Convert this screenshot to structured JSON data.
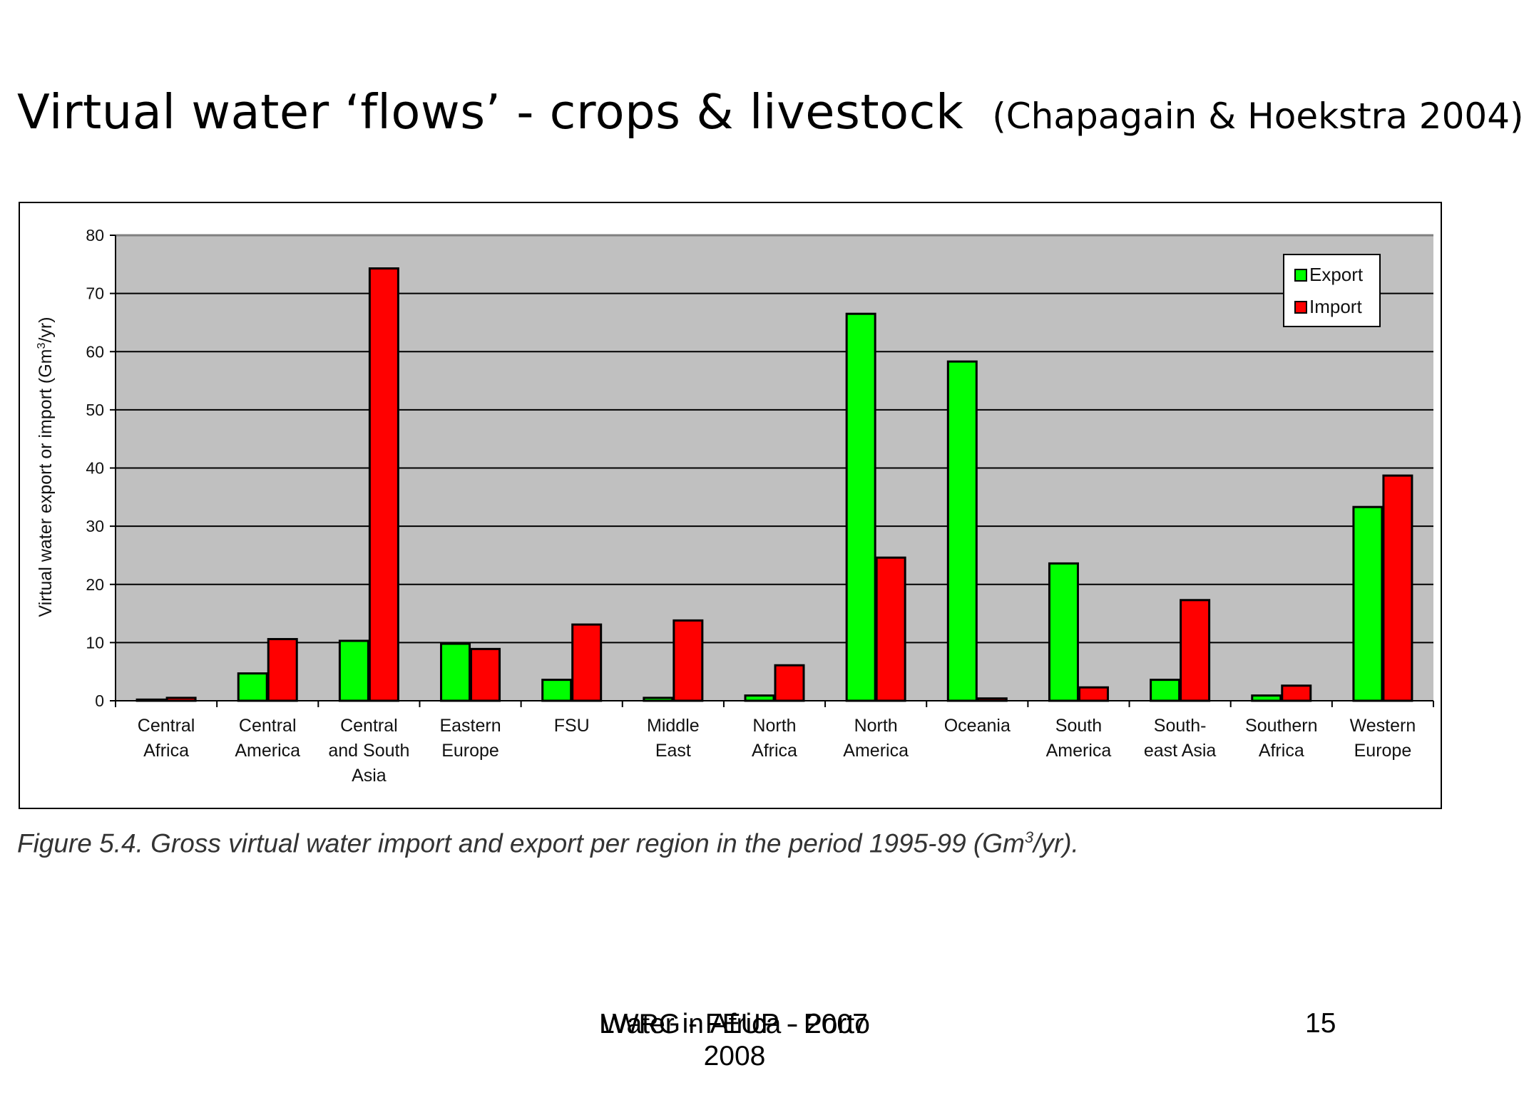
{
  "slide": {
    "title": "Virtual water ‘flows’ - crops & livestock",
    "citation": "(Chapagain & Hoekstra 2004)",
    "caption_main": "Figure 5.4. Gross virtual water import and export per region in the period 1995-99 (Gm",
    "caption_sup": "3",
    "caption_tail": "/yr).",
    "footer_line1": "Water in Africa - 2007",
    "footer_line2": "LWRG - FEUP - Porto",
    "footer_line3": "2008",
    "page_number": "15"
  },
  "chart_data": {
    "type": "bar",
    "categories": [
      [
        "Central",
        "Africa"
      ],
      [
        "Central",
        "America"
      ],
      [
        "Central",
        "and South",
        "Asia"
      ],
      [
        "Eastern",
        "Europe"
      ],
      [
        "FSU"
      ],
      [
        "Middle",
        "East"
      ],
      [
        "North",
        "Africa"
      ],
      [
        "North",
        "America"
      ],
      [
        "Oceania"
      ],
      [
        "South",
        "America"
      ],
      [
        "South-",
        "east Asia"
      ],
      [
        "Southern",
        "Africa"
      ],
      [
        "Western",
        "Europe"
      ]
    ],
    "series": [
      {
        "name": "Export",
        "color": "#00ff00",
        "values": [
          0.2,
          4.7,
          10.3,
          9.8,
          3.6,
          0.5,
          0.9,
          66.5,
          58.3,
          23.6,
          3.6,
          0.9,
          33.3
        ]
      },
      {
        "name": "Import",
        "color": "#ff0000",
        "values": [
          0.5,
          10.6,
          74.3,
          8.9,
          13.1,
          13.8,
          6.1,
          24.6,
          0.4,
          2.3,
          17.3,
          2.6,
          38.7
        ]
      }
    ],
    "ylabel_main": "Virtual water export or import (Gm",
    "ylabel_sup": "3",
    "ylabel_tail": "/yr)",
    "ylim": [
      0,
      80
    ],
    "yticks": [
      "0",
      "10",
      "20",
      "30",
      "40",
      "50",
      "60",
      "70",
      "80"
    ],
    "grid": true,
    "plot_background": "#c0c0c0",
    "legend_position": "top-right"
  }
}
